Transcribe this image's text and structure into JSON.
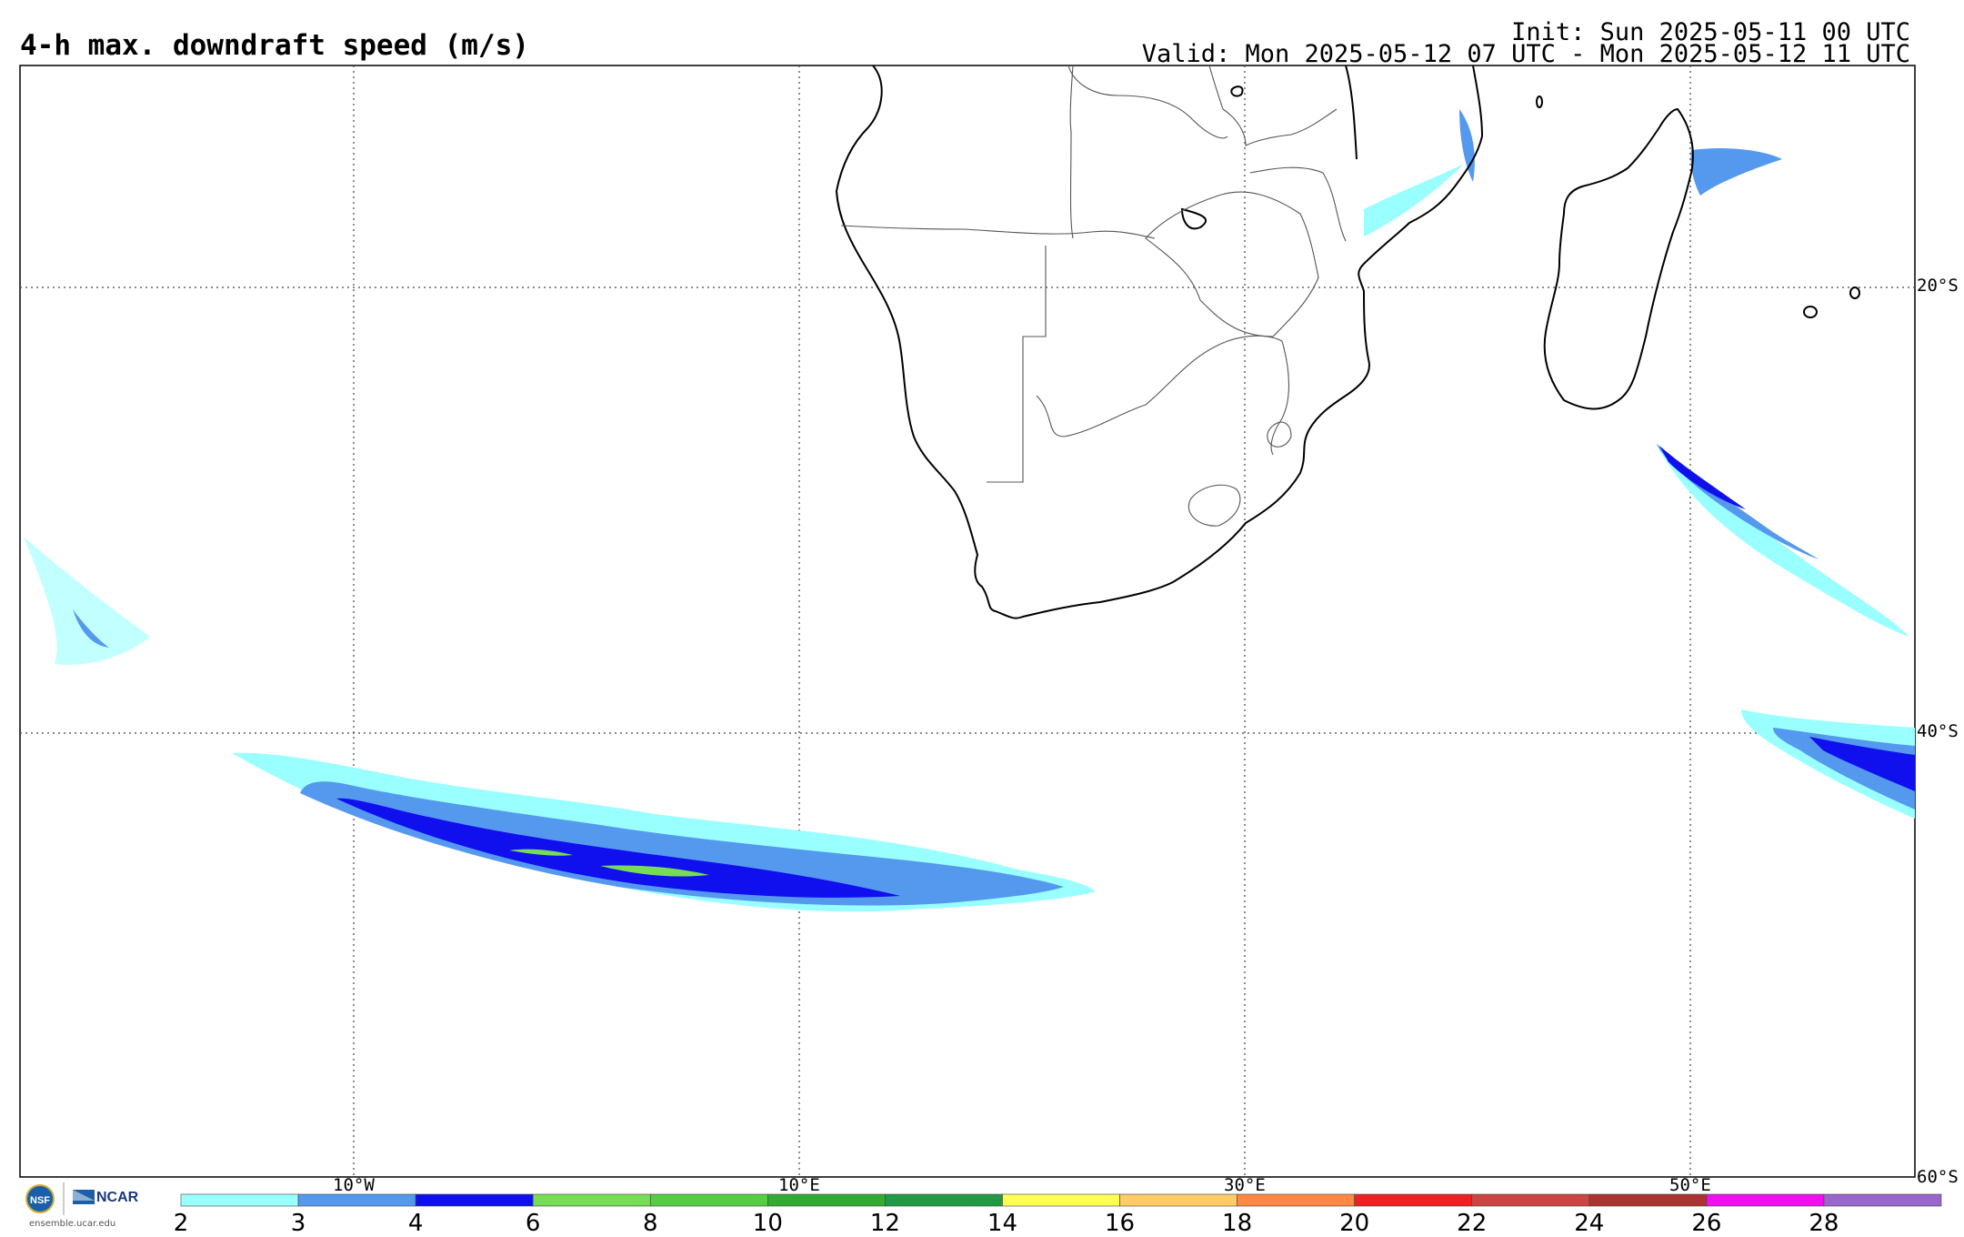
{
  "header": {
    "title": "4-h max. downdraft speed (m/s)",
    "init": "Init: Sun 2025-05-11 00 UTC",
    "valid": "Valid: Mon 2025-05-12 07 UTC - Mon 2025-05-12 11 UTC"
  },
  "map": {
    "lon_labels": [
      "10°W",
      "10°E",
      "30°E",
      "50°E"
    ],
    "lat_labels": [
      "20°S",
      "40°S",
      "60°S"
    ],
    "grid": "dotted"
  },
  "colorbar": {
    "labels": [
      "2",
      "3",
      "4",
      "6",
      "8",
      "10",
      "12",
      "14",
      "16",
      "18",
      "20",
      "22",
      "24",
      "26",
      "28"
    ],
    "colors": [
      "#99ffff",
      "#5599ee",
      "#1010ee",
      "#77dd55",
      "#55cc44",
      "#33aa33",
      "#229944",
      "#ffff55",
      "#ffcc66",
      "#ff8844",
      "#ee2222",
      "#cc4444",
      "#aa3333",
      "#ee11ee",
      "#9966cc"
    ]
  },
  "logos": {
    "nsf": "NSF",
    "ncar": "NCAR",
    "url": "ensemble.ucar.edu"
  },
  "colors": {
    "land_outline": "#000000",
    "border": "#555555",
    "grid": "#444444"
  }
}
